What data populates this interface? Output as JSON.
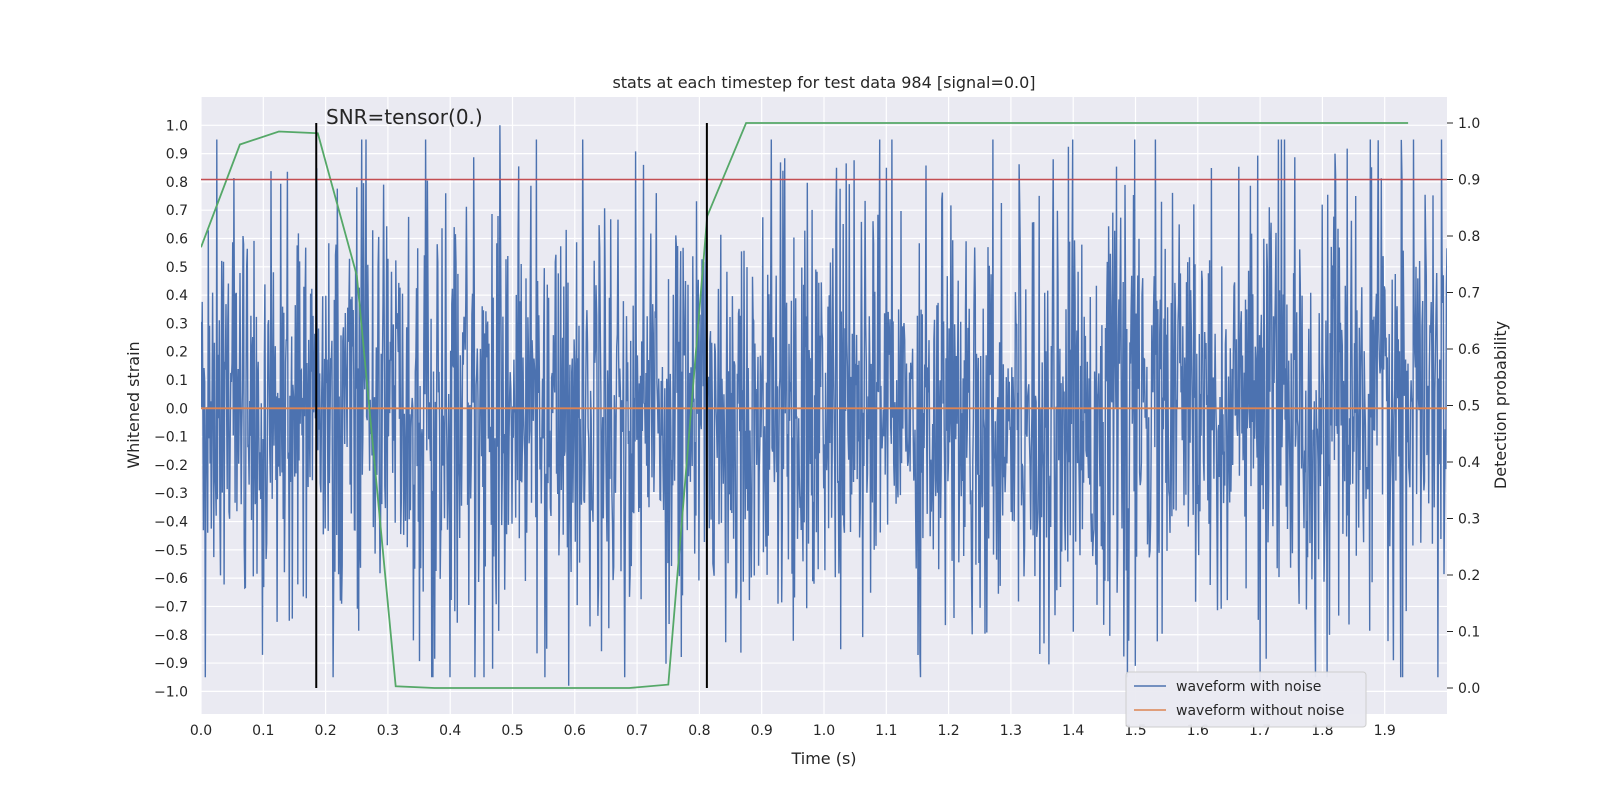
{
  "chart_data": {
    "type": "line",
    "title": "stats at each timestep for test data 984 [signal=0.0]",
    "xlabel": "Time (s)",
    "ylabel_left": "Whitened strain",
    "ylabel_right": "Detection probability",
    "xlim": [
      0.0,
      2.0
    ],
    "ylim_left": [
      -1.08,
      1.1
    ],
    "ylim_right": [
      -0.046,
      1.046
    ],
    "x_ticks": [
      "0.0",
      "0.1",
      "0.2",
      "0.3",
      "0.4",
      "0.5",
      "0.6",
      "0.7",
      "0.8",
      "0.9",
      "1.0",
      "1.1",
      "1.2",
      "1.3",
      "1.4",
      "1.5",
      "1.6",
      "1.7",
      "1.8",
      "1.9"
    ],
    "y_ticks_left": [
      "1.0",
      "0.9",
      "0.8",
      "0.7",
      "0.6",
      "0.5",
      "0.4",
      "0.3",
      "0.2",
      "0.1",
      "0.0",
      "−0.1",
      "−0.2",
      "−0.3",
      "−0.4",
      "−0.5",
      "−0.6",
      "−0.7",
      "−0.8",
      "−0.9",
      "−1.0"
    ],
    "y_ticks_right": [
      "1.0",
      "0.9",
      "0.8",
      "0.7",
      "0.6",
      "0.5",
      "0.4",
      "0.3",
      "0.2",
      "0.1",
      "0.0"
    ],
    "grid": true,
    "legend_placement": "lower-right",
    "annotation": "SNR=tensor(0.)",
    "threshold": {
      "axis": "right",
      "value": 0.9,
      "color": "#c44e52"
    },
    "vertical_markers": [
      0.185,
      0.812
    ],
    "series": [
      {
        "name": "waveform with noise",
        "axis": "left",
        "color": "#4c72b0",
        "kind": "noise",
        "x_range": [
          0.0,
          2.0
        ],
        "samples": 2048,
        "noise_std": 0.38,
        "peaks": [
          [
            0.48,
            1.0
          ],
          [
            0.59,
            -0.98
          ],
          [
            0.68,
            -0.95
          ],
          [
            0.71,
            0.86
          ],
          [
            1.02,
            0.85
          ],
          [
            1.1,
            0.85
          ],
          [
            1.5,
            -0.91
          ],
          [
            1.7,
            -0.97
          ],
          [
            1.82,
            0.9
          ]
        ]
      },
      {
        "name": "waveform without noise",
        "axis": "left",
        "color": "#dd8452",
        "x": [
          0.0,
          2.0
        ],
        "values": [
          0.0,
          0.0
        ]
      },
      {
        "axis": "right",
        "color": "#55a868",
        "x": [
          0.0,
          0.0625,
          0.125,
          0.1875,
          0.25,
          0.3125,
          0.375,
          0.4375,
          0.5,
          0.5625,
          0.625,
          0.6875,
          0.75,
          0.8125,
          0.875,
          0.9375,
          1.0,
          1.0625,
          1.125,
          1.1875,
          1.25,
          1.3125,
          1.375,
          1.4375,
          1.5,
          1.5625,
          1.625,
          1.6875,
          1.75,
          1.8125,
          1.875,
          1.9375
        ],
        "values": [
          0.78,
          0.962,
          0.985,
          0.982,
          0.73,
          0.003,
          0.0,
          0.0,
          0.0,
          0.0,
          0.0,
          0.0,
          0.006,
          0.835,
          1.0,
          1.0,
          1.0,
          1.0,
          1.0,
          1.0,
          1.0,
          1.0,
          1.0,
          1.0,
          1.0,
          1.0,
          1.0,
          1.0,
          1.0,
          1.0,
          1.0,
          1.0
        ]
      }
    ]
  }
}
